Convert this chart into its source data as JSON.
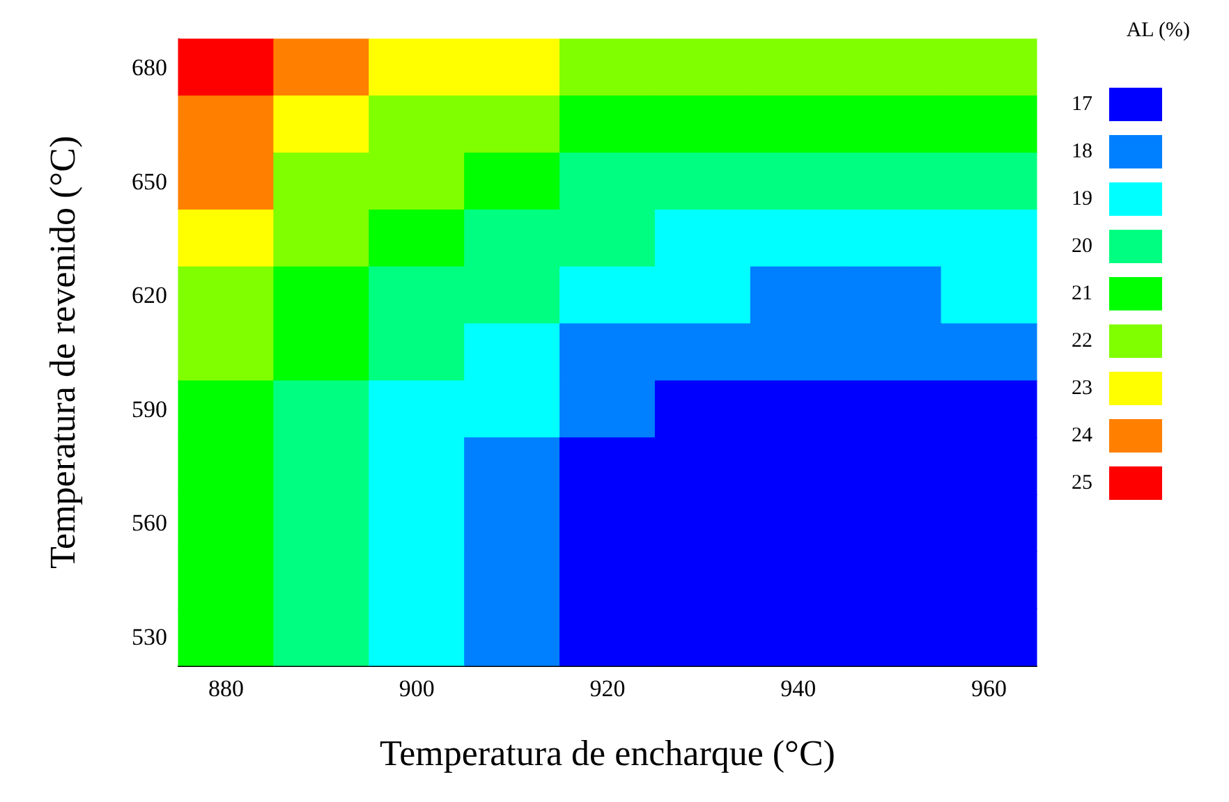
{
  "chart_data": {
    "type": "heatmap",
    "xlabel": "Temperatura de encharque (°C)",
    "ylabel": "Temperatura de revenido (°C)",
    "clabel": "AL (%)",
    "categories": [
      "880",
      null,
      "900",
      null,
      "920",
      null,
      "940",
      null,
      "960"
    ],
    "y_categories": [
      "680",
      null,
      "650",
      null,
      "620",
      null,
      "590",
      null,
      "560",
      null,
      "530"
    ],
    "cells": [
      [
        25,
        24,
        23,
        23,
        22,
        22,
        22,
        22,
        22
      ],
      [
        24,
        23,
        22,
        22,
        21,
        21,
        21,
        21,
        21
      ],
      [
        24,
        22,
        22,
        21,
        20,
        20,
        20,
        20,
        20
      ],
      [
        23,
        22,
        21,
        20,
        20,
        19,
        19,
        19,
        19
      ],
      [
        22,
        21,
        20,
        20,
        19,
        19,
        18,
        18,
        19
      ],
      [
        22,
        21,
        20,
        19,
        18,
        18,
        18,
        18,
        18
      ],
      [
        21,
        20,
        19,
        19,
        18,
        17,
        17,
        17,
        17
      ],
      [
        21,
        20,
        19,
        18,
        17,
        17,
        17,
        17,
        17
      ],
      [
        21,
        20,
        19,
        18,
        17,
        17,
        17,
        17,
        17
      ],
      [
        21,
        20,
        19,
        18,
        17,
        17,
        17,
        17,
        17
      ],
      [
        21,
        20,
        19,
        18,
        17,
        17,
        17,
        17,
        17
      ]
    ],
    "clim": [
      16.5,
      25.5
    ],
    "cticks": [
      17,
      18,
      19,
      20,
      21,
      22,
      23,
      24,
      25
    ],
    "colors": [
      "#0000ff",
      "#0080ff",
      "#00ffff",
      "#00ff80",
      "#00ff00",
      "#80ff00",
      "#ffff00",
      "#ff8000",
      "#ff0000"
    ]
  }
}
